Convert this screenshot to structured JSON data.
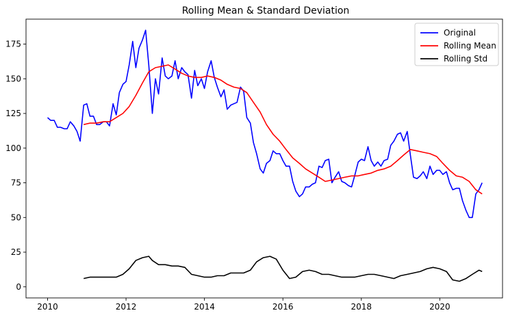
{
  "chart_data": {
    "type": "line",
    "title": "Rolling Mean & Standard Deviation",
    "xlabel": "",
    "ylabel": "",
    "xlim": [
      2009.45,
      2021.6
    ],
    "ylim": [
      -8,
      193
    ],
    "x_ticks": [
      2010,
      2012,
      2014,
      2016,
      2018,
      2020
    ],
    "y_ticks": [
      0,
      25,
      50,
      75,
      100,
      125,
      150,
      175
    ],
    "grid": false,
    "legend_position": "top-right",
    "series": [
      {
        "name": "Original",
        "color": "#0000ff",
        "points": [
          [
            2010.0,
            122
          ],
          [
            2010.08,
            120
          ],
          [
            2010.17,
            120
          ],
          [
            2010.25,
            115
          ],
          [
            2010.33,
            115
          ],
          [
            2010.42,
            114
          ],
          [
            2010.5,
            114
          ],
          [
            2010.58,
            119
          ],
          [
            2010.67,
            116
          ],
          [
            2010.75,
            112
          ],
          [
            2010.83,
            105
          ],
          [
            2010.92,
            131
          ],
          [
            2011.0,
            132
          ],
          [
            2011.08,
            123
          ],
          [
            2011.17,
            123
          ],
          [
            2011.25,
            117
          ],
          [
            2011.33,
            117
          ],
          [
            2011.42,
            119
          ],
          [
            2011.5,
            119
          ],
          [
            2011.58,
            116
          ],
          [
            2011.67,
            132
          ],
          [
            2011.75,
            124
          ],
          [
            2011.83,
            140
          ],
          [
            2011.92,
            146
          ],
          [
            2012.0,
            148
          ],
          [
            2012.08,
            160
          ],
          [
            2012.17,
            177
          ],
          [
            2012.25,
            158
          ],
          [
            2012.33,
            172
          ],
          [
            2012.42,
            178
          ],
          [
            2012.5,
            185
          ],
          [
            2012.58,
            160
          ],
          [
            2012.67,
            125
          ],
          [
            2012.75,
            150
          ],
          [
            2012.83,
            139
          ],
          [
            2012.92,
            165
          ],
          [
            2013.0,
            152
          ],
          [
            2013.08,
            150
          ],
          [
            2013.17,
            152
          ],
          [
            2013.25,
            163
          ],
          [
            2013.33,
            150
          ],
          [
            2013.42,
            158
          ],
          [
            2013.5,
            155
          ],
          [
            2013.58,
            153
          ],
          [
            2013.67,
            136
          ],
          [
            2013.75,
            156
          ],
          [
            2013.83,
            145
          ],
          [
            2013.92,
            150
          ],
          [
            2014.0,
            143
          ],
          [
            2014.08,
            155
          ],
          [
            2014.17,
            163
          ],
          [
            2014.25,
            151
          ],
          [
            2014.33,
            144
          ],
          [
            2014.42,
            137
          ],
          [
            2014.5,
            142
          ],
          [
            2014.58,
            128
          ],
          [
            2014.67,
            131
          ],
          [
            2014.75,
            132
          ],
          [
            2014.83,
            133
          ],
          [
            2014.92,
            144
          ],
          [
            2015.0,
            141
          ],
          [
            2015.08,
            122
          ],
          [
            2015.17,
            118
          ],
          [
            2015.25,
            104
          ],
          [
            2015.33,
            96
          ],
          [
            2015.42,
            85
          ],
          [
            2015.5,
            82
          ],
          [
            2015.58,
            89
          ],
          [
            2015.67,
            91
          ],
          [
            2015.75,
            98
          ],
          [
            2015.83,
            96
          ],
          [
            2015.92,
            96
          ],
          [
            2016.0,
            91
          ],
          [
            2016.08,
            87
          ],
          [
            2016.17,
            87
          ],
          [
            2016.25,
            76
          ],
          [
            2016.33,
            69
          ],
          [
            2016.42,
            65
          ],
          [
            2016.5,
            67
          ],
          [
            2016.58,
            72
          ],
          [
            2016.67,
            72
          ],
          [
            2016.75,
            74
          ],
          [
            2016.83,
            75
          ],
          [
            2016.92,
            87
          ],
          [
            2017.0,
            86
          ],
          [
            2017.08,
            91
          ],
          [
            2017.17,
            92
          ],
          [
            2017.25,
            75
          ],
          [
            2017.33,
            79
          ],
          [
            2017.42,
            83
          ],
          [
            2017.5,
            76
          ],
          [
            2017.58,
            75
          ],
          [
            2017.67,
            73
          ],
          [
            2017.75,
            72
          ],
          [
            2017.83,
            80
          ],
          [
            2017.92,
            90
          ],
          [
            2018.0,
            92
          ],
          [
            2018.08,
            91
          ],
          [
            2018.17,
            101
          ],
          [
            2018.25,
            91
          ],
          [
            2018.33,
            87
          ],
          [
            2018.42,
            90
          ],
          [
            2018.5,
            87
          ],
          [
            2018.58,
            91
          ],
          [
            2018.67,
            92
          ],
          [
            2018.75,
            102
          ],
          [
            2018.83,
            105
          ],
          [
            2018.92,
            110
          ],
          [
            2019.0,
            111
          ],
          [
            2019.08,
            105
          ],
          [
            2019.17,
            112
          ],
          [
            2019.25,
            95
          ],
          [
            2019.33,
            79
          ],
          [
            2019.42,
            78
          ],
          [
            2019.5,
            80
          ],
          [
            2019.58,
            83
          ],
          [
            2019.67,
            78
          ],
          [
            2019.75,
            87
          ],
          [
            2019.83,
            81
          ],
          [
            2019.92,
            84
          ],
          [
            2020.0,
            84
          ],
          [
            2020.08,
            81
          ],
          [
            2020.17,
            83
          ],
          [
            2020.25,
            75
          ],
          [
            2020.33,
            70
          ],
          [
            2020.42,
            71
          ],
          [
            2020.5,
            71
          ],
          [
            2020.58,
            62
          ],
          [
            2020.67,
            55
          ],
          [
            2020.75,
            50
          ],
          [
            2020.83,
            50
          ],
          [
            2020.92,
            67
          ],
          [
            2021.0,
            70
          ],
          [
            2021.08,
            75
          ]
        ]
      },
      {
        "name": "Rolling Mean",
        "color": "#ff0000",
        "points": [
          [
            2010.92,
            117
          ],
          [
            2011.08,
            118
          ],
          [
            2011.25,
            118
          ],
          [
            2011.42,
            119
          ],
          [
            2011.58,
            119
          ],
          [
            2011.75,
            122
          ],
          [
            2011.92,
            125
          ],
          [
            2012.08,
            130
          ],
          [
            2012.25,
            138
          ],
          [
            2012.42,
            147
          ],
          [
            2012.58,
            155
          ],
          [
            2012.75,
            158
          ],
          [
            2012.92,
            159
          ],
          [
            2013.08,
            160
          ],
          [
            2013.25,
            157
          ],
          [
            2013.42,
            154
          ],
          [
            2013.58,
            152
          ],
          [
            2013.75,
            151
          ],
          [
            2013.92,
            151
          ],
          [
            2014.08,
            152
          ],
          [
            2014.25,
            151
          ],
          [
            2014.42,
            149
          ],
          [
            2014.58,
            146
          ],
          [
            2014.75,
            144
          ],
          [
            2014.92,
            143
          ],
          [
            2015.08,
            140
          ],
          [
            2015.25,
            133
          ],
          [
            2015.42,
            126
          ],
          [
            2015.58,
            117
          ],
          [
            2015.75,
            110
          ],
          [
            2015.92,
            105
          ],
          [
            2016.08,
            99
          ],
          [
            2016.25,
            93
          ],
          [
            2016.42,
            89
          ],
          [
            2016.58,
            85
          ],
          [
            2016.75,
            82
          ],
          [
            2016.92,
            79
          ],
          [
            2017.08,
            76
          ],
          [
            2017.25,
            77
          ],
          [
            2017.42,
            78
          ],
          [
            2017.58,
            79
          ],
          [
            2017.75,
            80
          ],
          [
            2017.92,
            80
          ],
          [
            2018.08,
            81
          ],
          [
            2018.25,
            82
          ],
          [
            2018.42,
            84
          ],
          [
            2018.58,
            85
          ],
          [
            2018.75,
            87
          ],
          [
            2018.92,
            91
          ],
          [
            2019.08,
            95
          ],
          [
            2019.25,
            99
          ],
          [
            2019.42,
            98
          ],
          [
            2019.58,
            97
          ],
          [
            2019.75,
            96
          ],
          [
            2019.92,
            94
          ],
          [
            2020.08,
            89
          ],
          [
            2020.25,
            84
          ],
          [
            2020.42,
            80
          ],
          [
            2020.58,
            79
          ],
          [
            2020.75,
            76
          ],
          [
            2020.92,
            70
          ],
          [
            2021.08,
            67
          ]
        ]
      },
      {
        "name": "Rolling Std",
        "color": "#000000",
        "points": [
          [
            2010.92,
            6
          ],
          [
            2011.08,
            7
          ],
          [
            2011.25,
            7
          ],
          [
            2011.42,
            7
          ],
          [
            2011.58,
            7
          ],
          [
            2011.75,
            7
          ],
          [
            2011.92,
            9
          ],
          [
            2012.08,
            13
          ],
          [
            2012.25,
            19
          ],
          [
            2012.42,
            21
          ],
          [
            2012.58,
            22
          ],
          [
            2012.67,
            19
          ],
          [
            2012.83,
            16
          ],
          [
            2013.0,
            16
          ],
          [
            2013.17,
            15
          ],
          [
            2013.33,
            15
          ],
          [
            2013.5,
            14
          ],
          [
            2013.67,
            9
          ],
          [
            2013.83,
            8
          ],
          [
            2014.0,
            7
          ],
          [
            2014.17,
            7
          ],
          [
            2014.33,
            8
          ],
          [
            2014.5,
            8
          ],
          [
            2014.67,
            10
          ],
          [
            2014.83,
            10
          ],
          [
            2015.0,
            10
          ],
          [
            2015.17,
            12
          ],
          [
            2015.33,
            18
          ],
          [
            2015.5,
            21
          ],
          [
            2015.67,
            22
          ],
          [
            2015.83,
            20
          ],
          [
            2016.0,
            12
          ],
          [
            2016.17,
            6
          ],
          [
            2016.33,
            7
          ],
          [
            2016.5,
            11
          ],
          [
            2016.67,
            12
          ],
          [
            2016.83,
            11
          ],
          [
            2017.0,
            9
          ],
          [
            2017.17,
            9
          ],
          [
            2017.33,
            8
          ],
          [
            2017.5,
            7
          ],
          [
            2017.67,
            7
          ],
          [
            2017.83,
            7
          ],
          [
            2018.0,
            8
          ],
          [
            2018.17,
            9
          ],
          [
            2018.33,
            9
          ],
          [
            2018.5,
            8
          ],
          [
            2018.67,
            7
          ],
          [
            2018.83,
            6
          ],
          [
            2019.0,
            8
          ],
          [
            2019.17,
            9
          ],
          [
            2019.33,
            10
          ],
          [
            2019.5,
            11
          ],
          [
            2019.67,
            13
          ],
          [
            2019.83,
            14
          ],
          [
            2020.0,
            13
          ],
          [
            2020.17,
            11
          ],
          [
            2020.33,
            5
          ],
          [
            2020.5,
            4
          ],
          [
            2020.67,
            6
          ],
          [
            2020.83,
            9
          ],
          [
            2021.0,
            12
          ],
          [
            2021.08,
            11
          ]
        ]
      }
    ]
  }
}
